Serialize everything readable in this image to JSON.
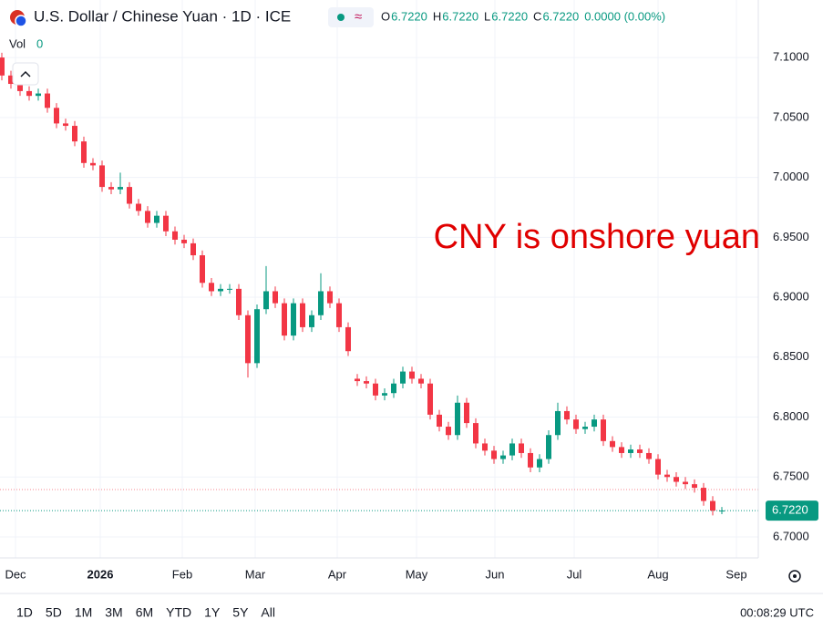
{
  "header": {
    "title": "U.S. Dollar / Chinese Yuan · 1D · ICE",
    "ohlc": [
      {
        "label": "O",
        "value": "6.7220"
      },
      {
        "label": "H",
        "value": "6.7220"
      },
      {
        "label": "L",
        "value": "6.7220"
      },
      {
        "label": "C",
        "value": "6.7220"
      }
    ],
    "change": "0.0000 (0.00%)",
    "volume_label": "Vol",
    "volume_value": "0"
  },
  "chart_data": {
    "type": "candlestick",
    "annotation": "CNY is onshore yuan",
    "up_color": "#089981",
    "down_color": "#f23645",
    "grid": true,
    "open": [
      7.1,
      7.085,
      7.078,
      7.072,
      7.068,
      7.07,
      7.058,
      7.045,
      7.043,
      7.03,
      7.012,
      7.01,
      6.992,
      6.99,
      6.992,
      6.978,
      6.972,
      6.962,
      6.968,
      6.955,
      6.948,
      6.945,
      6.935,
      6.912,
      6.905,
      6.907,
      6.907,
      6.885,
      6.845,
      6.89,
      6.905,
      6.895,
      6.868,
      6.895,
      6.875,
      6.885,
      6.905,
      6.895,
      6.875,
      6.832,
      6.83,
      6.828,
      6.818,
      6.82,
      6.828,
      6.838,
      6.832,
      6.828,
      6.802,
      6.792,
      6.785,
      6.812,
      6.795,
      6.778,
      6.772,
      6.765,
      6.768,
      6.778,
      6.77,
      6.758,
      6.765,
      6.785,
      6.805,
      6.798,
      6.79,
      6.792,
      6.798,
      6.78,
      6.775,
      6.77,
      6.773,
      6.77,
      6.765,
      6.752,
      6.75,
      6.746,
      6.744,
      6.741,
      6.73,
      6.722
    ],
    "high": [
      7.104,
      7.089,
      7.082,
      7.076,
      7.074,
      7.074,
      7.062,
      7.049,
      7.047,
      7.034,
      7.016,
      7.014,
      6.996,
      7.004,
      6.996,
      6.982,
      6.976,
      6.972,
      6.972,
      6.959,
      6.952,
      6.949,
      6.939,
      6.916,
      6.911,
      6.911,
      6.911,
      6.889,
      6.894,
      6.926,
      6.909,
      6.899,
      6.899,
      6.899,
      6.889,
      6.92,
      6.909,
      6.899,
      6.879,
      6.836,
      6.834,
      6.832,
      6.824,
      6.832,
      6.842,
      6.842,
      6.836,
      6.832,
      6.806,
      6.796,
      6.818,
      6.816,
      6.799,
      6.782,
      6.776,
      6.772,
      6.782,
      6.782,
      6.774,
      6.769,
      6.789,
      6.812,
      6.809,
      6.802,
      6.796,
      6.802,
      6.802,
      6.784,
      6.779,
      6.777,
      6.777,
      6.774,
      6.769,
      6.756,
      6.754,
      6.75,
      6.748,
      6.745,
      6.734,
      6.725
    ],
    "low": [
      7.081,
      7.074,
      7.068,
      7.064,
      7.064,
      7.054,
      7.041,
      7.039,
      7.026,
      7.008,
      7.006,
      6.988,
      6.986,
      6.986,
      6.974,
      6.968,
      6.958,
      6.958,
      6.951,
      6.944,
      6.941,
      6.931,
      6.908,
      6.901,
      6.901,
      6.903,
      6.881,
      6.833,
      6.841,
      6.886,
      6.891,
      6.864,
      6.864,
      6.871,
      6.871,
      6.881,
      6.891,
      6.871,
      6.851,
      6.826,
      6.824,
      6.814,
      6.814,
      6.816,
      6.824,
      6.828,
      6.824,
      6.798,
      6.788,
      6.781,
      6.781,
      6.791,
      6.774,
      6.768,
      6.761,
      6.761,
      6.764,
      6.766,
      6.754,
      6.754,
      6.761,
      6.781,
      6.794,
      6.786,
      6.786,
      6.788,
      6.776,
      6.771,
      6.766,
      6.766,
      6.766,
      6.761,
      6.748,
      6.746,
      6.742,
      6.74,
      6.737,
      6.726,
      6.718,
      6.719
    ],
    "close": [
      7.085,
      7.078,
      7.072,
      7.068,
      7.07,
      7.058,
      7.045,
      7.043,
      7.03,
      7.012,
      7.01,
      6.992,
      6.99,
      6.992,
      6.978,
      6.972,
      6.962,
      6.968,
      6.955,
      6.948,
      6.945,
      6.935,
      6.912,
      6.905,
      6.907,
      6.907,
      6.885,
      6.845,
      6.89,
      6.905,
      6.895,
      6.868,
      6.895,
      6.875,
      6.885,
      6.905,
      6.895,
      6.875,
      6.855,
      6.83,
      6.828,
      6.818,
      6.82,
      6.828,
      6.838,
      6.832,
      6.828,
      6.802,
      6.792,
      6.785,
      6.812,
      6.795,
      6.778,
      6.772,
      6.765,
      6.768,
      6.778,
      6.77,
      6.758,
      6.765,
      6.785,
      6.805,
      6.798,
      6.79,
      6.792,
      6.798,
      6.78,
      6.775,
      6.77,
      6.773,
      6.77,
      6.765,
      6.752,
      6.75,
      6.746,
      6.744,
      6.741,
      6.73,
      6.722,
      6.722
    ],
    "xlim": [
      -0.2,
      83
    ],
    "xticks": [
      {
        "value": 1.5,
        "label": "Dec"
      },
      {
        "value": 10.8,
        "label": "2026"
      },
      {
        "value": 19.8,
        "label": "Feb"
      },
      {
        "value": 27.8,
        "label": "Mar"
      },
      {
        "value": 36.8,
        "label": "Apr"
      },
      {
        "value": 45.5,
        "label": "May"
      },
      {
        "value": 54.1,
        "label": "Jun"
      },
      {
        "value": 62.8,
        "label": "Jul"
      },
      {
        "value": 72,
        "label": "Aug"
      },
      {
        "value": 80.6,
        "label": "Sep"
      }
    ],
    "ylim": [
      6.6825,
      7.148
    ],
    "yticks": [
      {
        "value": 6.7,
        "label": "6.7000"
      },
      {
        "value": 6.75,
        "label": "6.7500"
      },
      {
        "value": 6.8,
        "label": "6.8000"
      },
      {
        "value": 6.85,
        "label": "6.8500"
      },
      {
        "value": 6.9,
        "label": "6.9000"
      },
      {
        "value": 6.95,
        "label": "6.9500"
      },
      {
        "value": 7.0,
        "label": "7.0000"
      },
      {
        "value": 7.05,
        "label": "7.0500"
      },
      {
        "value": 7.1,
        "label": "7.1000"
      }
    ],
    "last_price": {
      "value": 6.722,
      "label": "6.7220"
    },
    "reference_line": 6.7395
  },
  "footer": {
    "ranges": [
      "1D",
      "5D",
      "1M",
      "3M",
      "6M",
      "YTD",
      "1Y",
      "5Y",
      "All"
    ],
    "clock": "00:08:29 UTC"
  }
}
